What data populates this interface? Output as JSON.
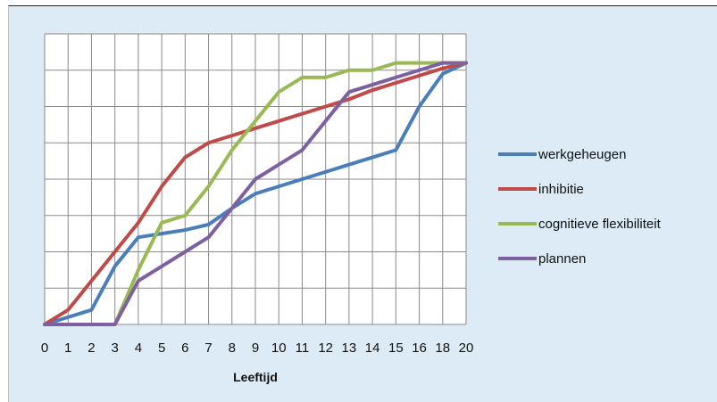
{
  "chart_data": {
    "type": "line",
    "title": "",
    "xlabel": "Leeftijd",
    "ylabel": "",
    "x": [
      "0",
      "1",
      "2",
      "3",
      "4",
      "5",
      "6",
      "7",
      "8",
      "9",
      "10",
      "11",
      "12",
      "13",
      "14",
      "15",
      "16",
      "18",
      "20"
    ],
    "ylim": [
      0,
      8
    ],
    "grid": true,
    "legend_position": "right",
    "series": [
      {
        "name": "werkgeheugen",
        "color": "#4a7ebb",
        "values": [
          0,
          0.2,
          0.4,
          1.6,
          2.4,
          2.5,
          2.6,
          2.75,
          3.2,
          3.6,
          3.8,
          4.0,
          4.2,
          4.4,
          4.6,
          4.8,
          6.0,
          6.9,
          7.2
        ]
      },
      {
        "name": "inhibitie",
        "color": "#be4b48",
        "values": [
          0,
          0.4,
          1.2,
          2.0,
          2.8,
          3.8,
          4.6,
          5.0,
          5.2,
          5.4,
          5.6,
          5.8,
          6.0,
          6.2,
          6.45,
          6.65,
          6.85,
          7.05,
          7.2
        ]
      },
      {
        "name": "cognitieve flexibiliteit",
        "color": "#98b954",
        "values": [
          0,
          0,
          0,
          0,
          1.5,
          2.8,
          3.0,
          3.8,
          4.8,
          5.6,
          6.4,
          6.8,
          6.8,
          7.0,
          7.0,
          7.2,
          7.2,
          7.2,
          7.2
        ]
      },
      {
        "name": "plannen",
        "color": "#7d60a0",
        "values": [
          0,
          0,
          0,
          0,
          1.2,
          1.6,
          2.0,
          2.4,
          3.2,
          4.0,
          4.4,
          4.8,
          5.6,
          6.4,
          6.6,
          6.8,
          7.0,
          7.2,
          7.2
        ]
      }
    ]
  }
}
